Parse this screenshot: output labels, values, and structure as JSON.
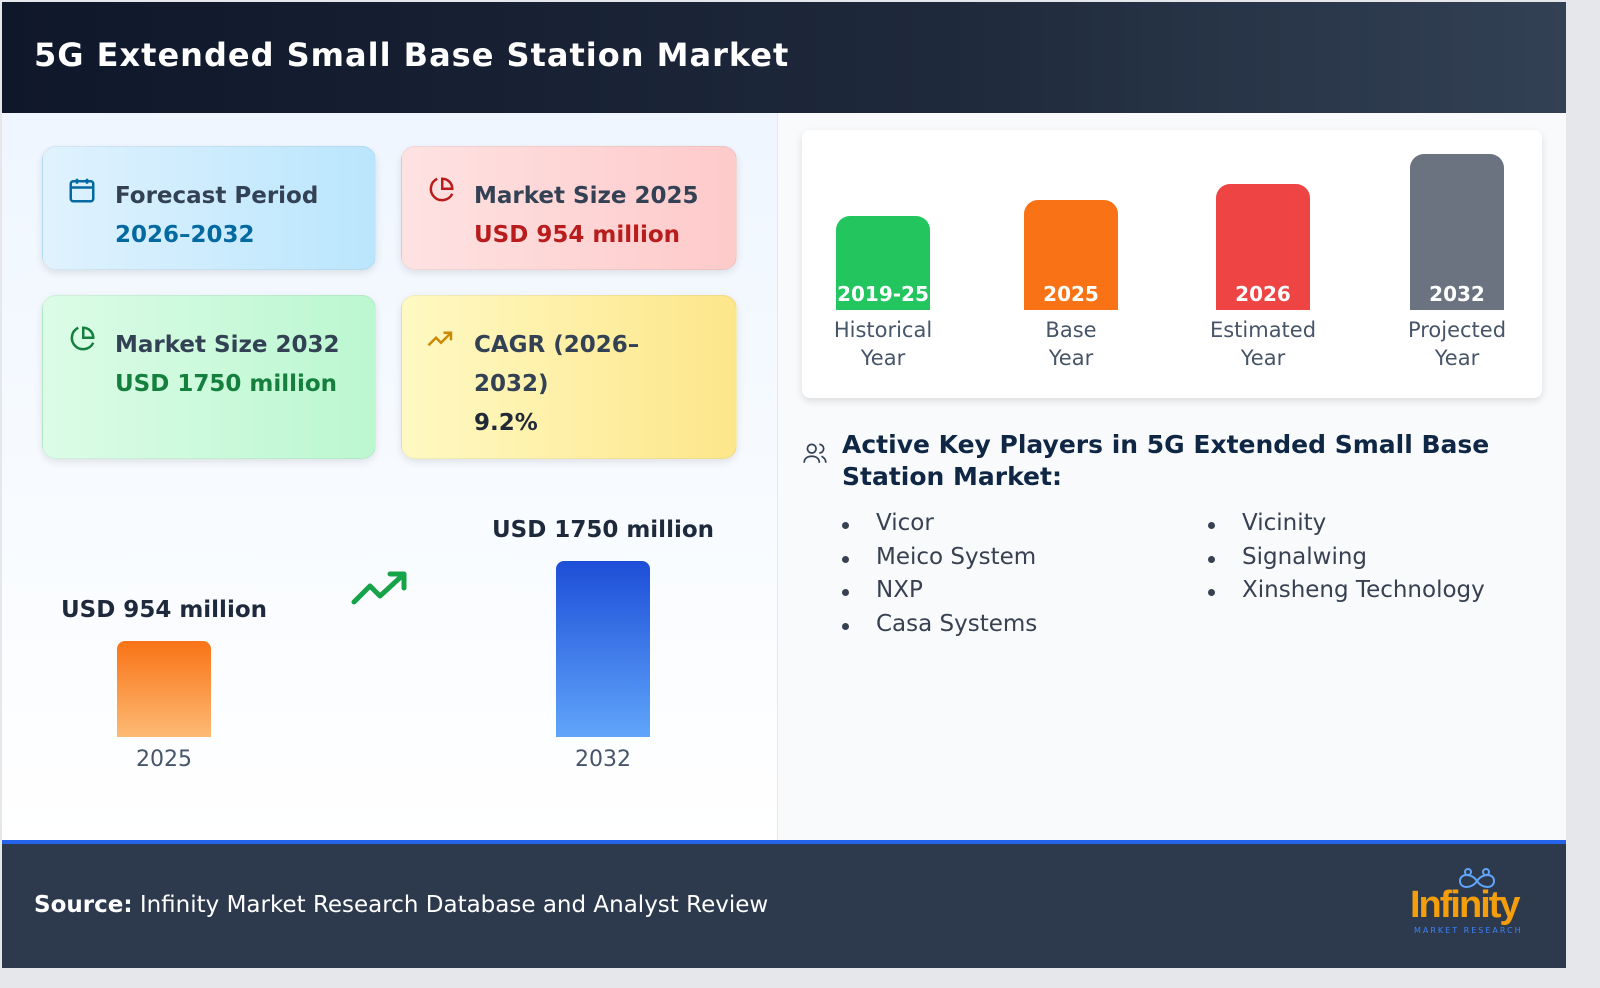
{
  "title": "5G Extended Small Base Station Market",
  "cards": [
    {
      "label": "Forecast Period",
      "value": "2026–2032",
      "icon": "calendar-icon",
      "color": "#0369a1"
    },
    {
      "label": "Market Size 2025",
      "value": "USD 954 million",
      "icon": "pie-chart-icon",
      "color": "#b91c1c"
    },
    {
      "label": "Market Size 2032",
      "value": "USD 1750 million",
      "icon": "pie-chart-icon",
      "color": "#15803d"
    },
    {
      "label": "CAGR (2026–2032)",
      "value": "9.2%",
      "icon": "trending-up-icon",
      "color": "#1f2937"
    }
  ],
  "chart_data": {
    "type": "bar",
    "categories": [
      "2025",
      "2032"
    ],
    "values": [
      954,
      1750
    ],
    "data_labels": [
      "USD 954 million",
      "USD 1750 million"
    ],
    "unit": "USD million",
    "colors": [
      "#f97316",
      "#2563eb"
    ]
  },
  "timeline": [
    {
      "year": "2019-25",
      "caption1": "Historical",
      "caption2": "Year",
      "color": "#22c55e"
    },
    {
      "year": "2025",
      "caption1": "Base",
      "caption2": "Year",
      "color": "#f97316"
    },
    {
      "year": "2026",
      "caption1": "Estimated",
      "caption2": "Year",
      "color": "#ef4444"
    },
    {
      "year": "2032",
      "caption1": "Projected",
      "caption2": "Year",
      "color": "#6b7280"
    }
  ],
  "players_title": "Active Key Players in 5G Extended Small Base Station Market:",
  "players_col1": [
    "Vicor",
    "Meico System",
    "NXP",
    "Casa Systems"
  ],
  "players_col2": [
    "Vicinity",
    "Signalwing",
    "Xinsheng Technology"
  ],
  "footer": {
    "source_label": "Source:",
    "source_text": " Infinity Market Research Database and Analyst Review"
  },
  "logo": {
    "name": "Infinity",
    "tagline": "MARKET RESEARCH"
  }
}
